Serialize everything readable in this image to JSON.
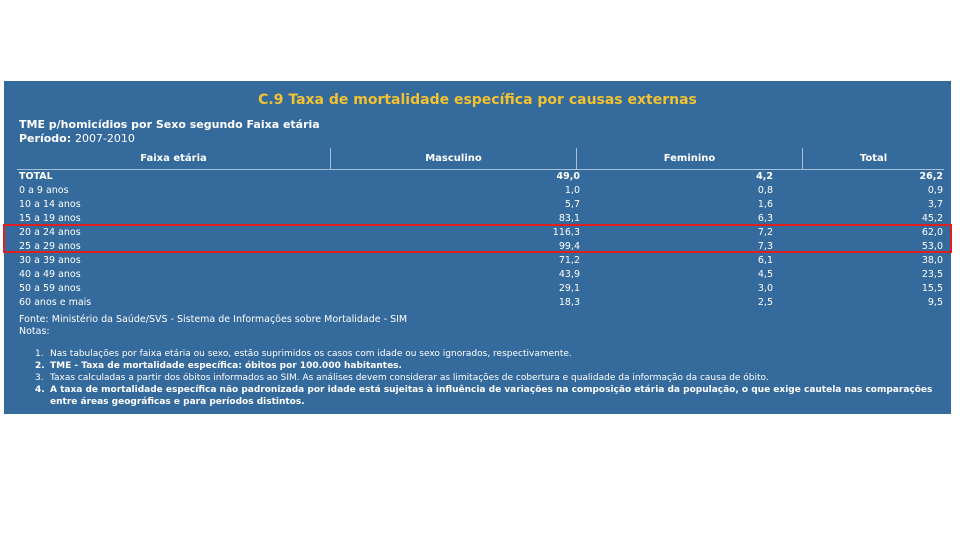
{
  "title": "C.9 Taxa de mortalidade específica por causas externas",
  "subtitle": "TME p/homicídios por Sexo segundo Faixa etária",
  "period_label": "Período:",
  "period_value": "2007-2010",
  "table": {
    "headers": [
      "Faixa etária",
      "Masculino",
      "Feminino",
      "Total"
    ],
    "rows": [
      [
        "TOTAL",
        "49,0",
        "4,2",
        "26,2"
      ],
      [
        "0 a 9 anos",
        "1,0",
        "0,8",
        "0,9"
      ],
      [
        "10 a 14 anos",
        "5,7",
        "1,6",
        "3,7"
      ],
      [
        "15 a 19 anos",
        "83,1",
        "6,3",
        "45,2"
      ],
      [
        "20 a 24 anos",
        "116,3",
        "7,2",
        "62,0"
      ],
      [
        "25 a 29 anos",
        "99,4",
        "7,3",
        "53,0"
      ],
      [
        "30 a 39 anos",
        "71,2",
        "6,1",
        "38,0"
      ],
      [
        "40 a 49 anos",
        "43,9",
        "4,5",
        "23,5"
      ],
      [
        "50 a 59 anos",
        "29,1",
        "3,0",
        "15,5"
      ],
      [
        "60 anos e mais",
        "18,3",
        "2,5",
        "9,5"
      ]
    ]
  },
  "source": "Fonte: Ministério da Saúde/SVS - Sistema de Informações sobre Mortalidade - SIM",
  "notes_label": "Notas:",
  "notes": [
    {
      "num": "1.",
      "text": "Nas tabulações por faixa etária ou sexo, estão suprimidos os casos com idade ou sexo ignorados, respectivamente."
    },
    {
      "num": "2.",
      "text": "TME - Taxa de mortalidade específica: óbitos por 100.000 habitantes."
    },
    {
      "num": "3.",
      "text": "Taxas calculadas a partir dos óbitos informados ao SIM. As análises devem considerar as limitações de cobertura e qualidade da informação da causa de óbito."
    },
    {
      "num": "4.",
      "text": "A taxa de mortalidade específica não padronizada por idade está sujeitas à influência de variações na composição etária da população, o que exige cautela nas comparações entre áreas geográficas e para períodos distintos."
    }
  ],
  "colors": {
    "panel": "#356a9c",
    "title": "#f2c230",
    "highlight": "#e02020"
  }
}
